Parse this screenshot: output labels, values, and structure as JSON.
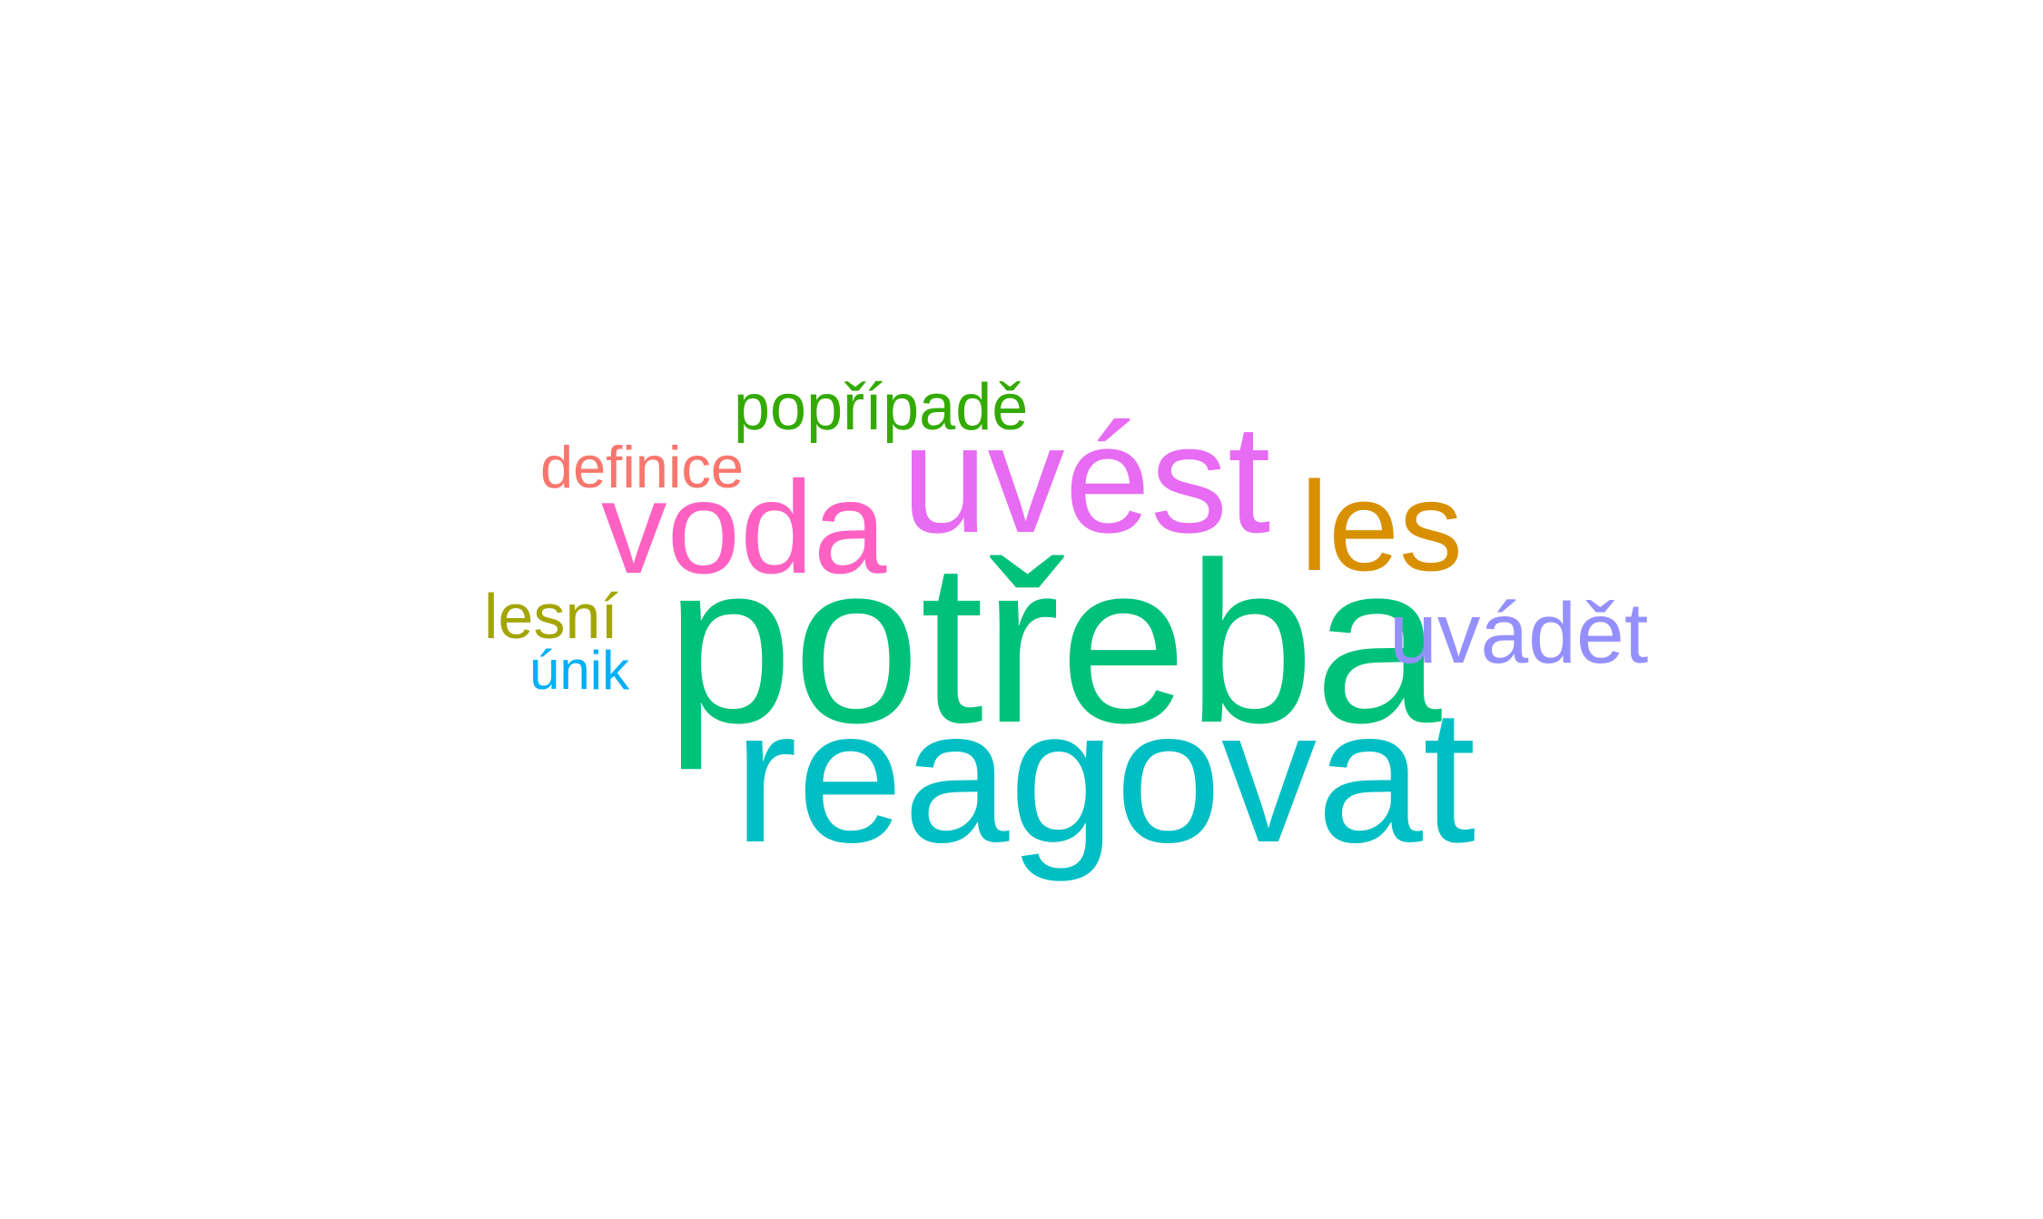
{
  "wordcloud": {
    "words": [
      {
        "text": "popřípadě",
        "color": "#33AA00"
      },
      {
        "text": "definice",
        "color": "#F8766D"
      },
      {
        "text": "uvést",
        "color": "#E76BF3"
      },
      {
        "text": "voda",
        "color": "#FF61C3"
      },
      {
        "text": "les",
        "color": "#D89000"
      },
      {
        "text": "lesní",
        "color": "#A3A500"
      },
      {
        "text": "potřeba",
        "color": "#00C17A"
      },
      {
        "text": "uvádět",
        "color": "#9590FF"
      },
      {
        "text": "únik",
        "color": "#00B0F6"
      },
      {
        "text": "reagovat",
        "color": "#00BFC4"
      }
    ]
  }
}
